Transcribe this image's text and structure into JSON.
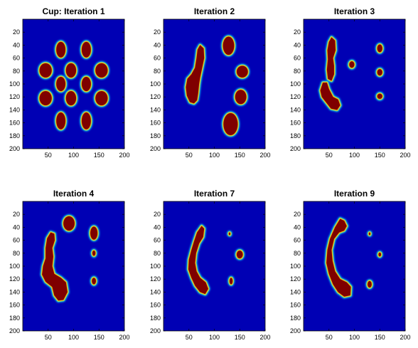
{
  "chart_data": [
    {
      "type": "heatmap",
      "title": "Cup: Iteration 1",
      "colormap": "jet",
      "xlim": [
        0,
        200
      ],
      "ylim": [
        0,
        200
      ],
      "y_reversed": true,
      "xticks": [
        50,
        100,
        150,
        200
      ],
      "yticks": [
        20,
        40,
        60,
        80,
        100,
        120,
        140,
        160,
        180,
        200
      ],
      "background_value": 0,
      "regions": [
        {
          "shape": "ellipse",
          "cx": 75,
          "cy": 47,
          "rx": 9,
          "ry": 12
        },
        {
          "shape": "ellipse",
          "cx": 125,
          "cy": 47,
          "rx": 9,
          "ry": 12
        },
        {
          "shape": "ellipse",
          "cx": 45,
          "cy": 79,
          "rx": 12,
          "ry": 11
        },
        {
          "shape": "ellipse",
          "cx": 95,
          "cy": 79,
          "rx": 10,
          "ry": 11
        },
        {
          "shape": "ellipse",
          "cx": 155,
          "cy": 79,
          "rx": 12,
          "ry": 11
        },
        {
          "shape": "ellipse",
          "cx": 75,
          "cy": 100,
          "rx": 9,
          "ry": 11
        },
        {
          "shape": "ellipse",
          "cx": 125,
          "cy": 100,
          "rx": 9,
          "ry": 11
        },
        {
          "shape": "ellipse",
          "cx": 45,
          "cy": 122,
          "rx": 12,
          "ry": 11
        },
        {
          "shape": "ellipse",
          "cx": 95,
          "cy": 122,
          "rx": 10,
          "ry": 11
        },
        {
          "shape": "ellipse",
          "cx": 155,
          "cy": 122,
          "rx": 12,
          "ry": 11
        },
        {
          "shape": "ellipse",
          "cx": 75,
          "cy": 157,
          "rx": 9,
          "ry": 13
        },
        {
          "shape": "ellipse",
          "cx": 125,
          "cy": 157,
          "rx": 9,
          "ry": 13
        }
      ]
    },
    {
      "type": "heatmap",
      "title": "Iteration 2",
      "colormap": "jet",
      "xlim": [
        0,
        200
      ],
      "ylim": [
        0,
        200
      ],
      "y_reversed": true,
      "xticks": [
        50,
        100,
        150,
        200
      ],
      "yticks": [
        20,
        40,
        60,
        80,
        100,
        120,
        140,
        160,
        180,
        200
      ],
      "background_value": 0,
      "regions": [
        {
          "shape": "path",
          "points": [
            [
              72,
              40
            ],
            [
              79,
              45
            ],
            [
              80,
              60
            ],
            [
              76,
              75
            ],
            [
              72,
              90
            ],
            [
              70,
              100
            ],
            [
              68,
              115
            ],
            [
              66,
              125
            ],
            [
              60,
              130
            ],
            [
              52,
              128
            ],
            [
              46,
              118
            ],
            [
              44,
              105
            ],
            [
              47,
              92
            ],
            [
              55,
              85
            ],
            [
              62,
              75
            ],
            [
              65,
              60
            ],
            [
              67,
              47
            ]
          ]
        },
        {
          "shape": "ellipse",
          "cx": 128,
          "cy": 41,
          "rx": 11,
          "ry": 14
        },
        {
          "shape": "ellipse",
          "cx": 155,
          "cy": 81,
          "rx": 11,
          "ry": 9
        },
        {
          "shape": "ellipse",
          "cx": 152,
          "cy": 120,
          "rx": 11,
          "ry": 11
        },
        {
          "shape": "ellipse",
          "cx": 132,
          "cy": 162,
          "rx": 14,
          "ry": 17
        }
      ]
    },
    {
      "type": "heatmap",
      "title": "Iteration 3",
      "colormap": "jet",
      "xlim": [
        0,
        200
      ],
      "ylim": [
        0,
        200
      ],
      "y_reversed": true,
      "xticks": [
        50,
        100,
        150,
        200
      ],
      "yticks": [
        20,
        40,
        60,
        80,
        100,
        120,
        140,
        160,
        180,
        200
      ],
      "background_value": 0,
      "regions": [
        {
          "shape": "path",
          "points": [
            [
              55,
              28
            ],
            [
              62,
              33
            ],
            [
              63,
              48
            ],
            [
              58,
              60
            ],
            [
              60,
              72
            ],
            [
              60,
              85
            ],
            [
              55,
              95
            ],
            [
              48,
              92
            ],
            [
              46,
              78
            ],
            [
              48,
              62
            ],
            [
              47,
              48
            ],
            [
              50,
              35
            ]
          ]
        },
        {
          "shape": "path",
          "points": [
            [
              38,
              98
            ],
            [
              46,
              98
            ],
            [
              50,
              108
            ],
            [
              58,
              120
            ],
            [
              68,
              124
            ],
            [
              72,
              133
            ],
            [
              66,
              140
            ],
            [
              54,
              138
            ],
            [
              44,
              128
            ],
            [
              36,
              120
            ],
            [
              33,
              110
            ]
          ]
        },
        {
          "shape": "ellipse",
          "cx": 95,
          "cy": 70,
          "rx": 5,
          "ry": 5
        },
        {
          "shape": "ellipse",
          "cx": 150,
          "cy": 45,
          "rx": 5,
          "ry": 6
        },
        {
          "shape": "ellipse",
          "cx": 150,
          "cy": 82,
          "rx": 5,
          "ry": 5
        },
        {
          "shape": "ellipse",
          "cx": 150,
          "cy": 119,
          "rx": 5,
          "ry": 4
        }
      ]
    },
    {
      "type": "heatmap",
      "title": "Iteration 4",
      "colormap": "jet",
      "xlim": [
        0,
        200
      ],
      "ylim": [
        0,
        200
      ],
      "y_reversed": true,
      "xticks": [
        50,
        100,
        150,
        200
      ],
      "yticks": [
        20,
        40,
        60,
        80,
        100,
        120,
        140,
        160,
        180,
        200
      ],
      "background_value": 0,
      "regions": [
        {
          "shape": "path",
          "points": [
            [
              55,
              48
            ],
            [
              62,
              50
            ],
            [
              63,
              60
            ],
            [
              58,
              72
            ],
            [
              60,
              85
            ],
            [
              58,
              100
            ],
            [
              62,
              112
            ],
            [
              75,
              118
            ],
            [
              85,
              125
            ],
            [
              88,
              140
            ],
            [
              80,
              152
            ],
            [
              70,
              153
            ],
            [
              62,
              145
            ],
            [
              58,
              132
            ],
            [
              45,
              124
            ],
            [
              38,
              113
            ],
            [
              40,
              100
            ],
            [
              45,
              88
            ],
            [
              45,
              72
            ],
            [
              48,
              57
            ]
          ]
        },
        {
          "shape": "ellipse",
          "cx": 91,
          "cy": 34,
          "rx": 11,
          "ry": 11
        },
        {
          "shape": "ellipse",
          "cx": 140,
          "cy": 49,
          "rx": 7,
          "ry": 10
        },
        {
          "shape": "ellipse",
          "cx": 140,
          "cy": 80,
          "rx": 3,
          "ry": 4
        },
        {
          "shape": "ellipse",
          "cx": 140,
          "cy": 123,
          "rx": 4,
          "ry": 5
        }
      ]
    },
    {
      "type": "heatmap",
      "title": "Iteration 7",
      "colormap": "jet",
      "xlim": [
        0,
        200
      ],
      "ylim": [
        0,
        200
      ],
      "y_reversed": true,
      "xticks": [
        50,
        100,
        150,
        200
      ],
      "yticks": [
        20,
        40,
        60,
        80,
        100,
        120,
        140,
        160,
        180,
        200
      ],
      "background_value": 0,
      "regions": [
        {
          "shape": "path",
          "points": [
            [
              75,
              38
            ],
            [
              80,
              42
            ],
            [
              78,
              55
            ],
            [
              70,
              65
            ],
            [
              64,
              80
            ],
            [
              62,
              95
            ],
            [
              65,
              108
            ],
            [
              72,
              118
            ],
            [
              83,
              125
            ],
            [
              88,
              135
            ],
            [
              82,
              143
            ],
            [
              72,
              140
            ],
            [
              62,
              130
            ],
            [
              55,
              118
            ],
            [
              49,
              105
            ],
            [
              50,
              90
            ],
            [
              55,
              75
            ],
            [
              60,
              62
            ],
            [
              66,
              48
            ]
          ]
        },
        {
          "shape": "ellipse",
          "cx": 130,
          "cy": 50,
          "rx": 1.5,
          "ry": 2
        },
        {
          "shape": "ellipse",
          "cx": 150,
          "cy": 82,
          "rx": 6,
          "ry": 6
        },
        {
          "shape": "ellipse",
          "cx": 133,
          "cy": 123,
          "rx": 3,
          "ry": 5
        }
      ]
    },
    {
      "type": "heatmap",
      "title": "Iteration 9",
      "colormap": "jet",
      "xlim": [
        0,
        200
      ],
      "ylim": [
        0,
        200
      ],
      "y_reversed": true,
      "xticks": [
        50,
        100,
        150,
        200
      ],
      "yticks": [
        20,
        40,
        60,
        80,
        100,
        120,
        140,
        160,
        180,
        200
      ],
      "background_value": 0,
      "regions": [
        {
          "shape": "path",
          "points": [
            [
              72,
              27
            ],
            [
              80,
              30
            ],
            [
              85,
              38
            ],
            [
              80,
              45
            ],
            [
              70,
              48
            ],
            [
              60,
              58
            ],
            [
              55,
              75
            ],
            [
              57,
              92
            ],
            [
              62,
              108
            ],
            [
              72,
              120
            ],
            [
              85,
              125
            ],
            [
              93,
              132
            ],
            [
              92,
              145
            ],
            [
              80,
              147
            ],
            [
              68,
              140
            ],
            [
              58,
              128
            ],
            [
              50,
              112
            ],
            [
              45,
              95
            ],
            [
              47,
              75
            ],
            [
              52,
              58
            ],
            [
              62,
              40
            ]
          ]
        },
        {
          "shape": "ellipse",
          "cx": 130,
          "cy": 50,
          "rx": 1.5,
          "ry": 2
        },
        {
          "shape": "ellipse",
          "cx": 150,
          "cy": 82,
          "rx": 2.5,
          "ry": 3
        },
        {
          "shape": "ellipse",
          "cx": 130,
          "cy": 128,
          "rx": 4,
          "ry": 5
        }
      ]
    }
  ]
}
